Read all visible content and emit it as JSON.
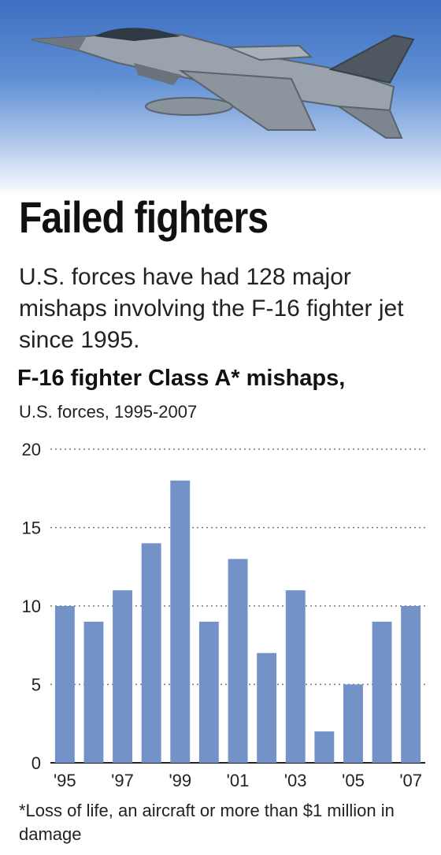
{
  "headline": "Failed fighters",
  "dek": "U.S. forces have had 128 major mishaps involving the F-16 fighter jet since 1995.",
  "footnote": "*Loss of life, an aircraft or more than $1 million in damage",
  "chart_data": {
    "type": "bar",
    "title": "F-16 fighter Class A* mishaps,",
    "subtitle": "U.S. forces, 1995-2007",
    "categories": [
      "1995",
      "1996",
      "1997",
      "1998",
      "1999",
      "2000",
      "2001",
      "2002",
      "2003",
      "2004",
      "2005",
      "2006",
      "2007"
    ],
    "values": [
      10,
      9,
      11,
      14,
      18,
      9,
      13,
      7,
      11,
      2,
      5,
      9,
      10
    ],
    "x_tick_labels": [
      "'95",
      "'97",
      "'99",
      "'01",
      "'03",
      "'05",
      "'07"
    ],
    "y_ticks": [
      0,
      5,
      10,
      15,
      20
    ],
    "ylim": [
      0,
      20
    ],
    "grid": "dotted horizontal",
    "bar_color": "#7393c8"
  }
}
